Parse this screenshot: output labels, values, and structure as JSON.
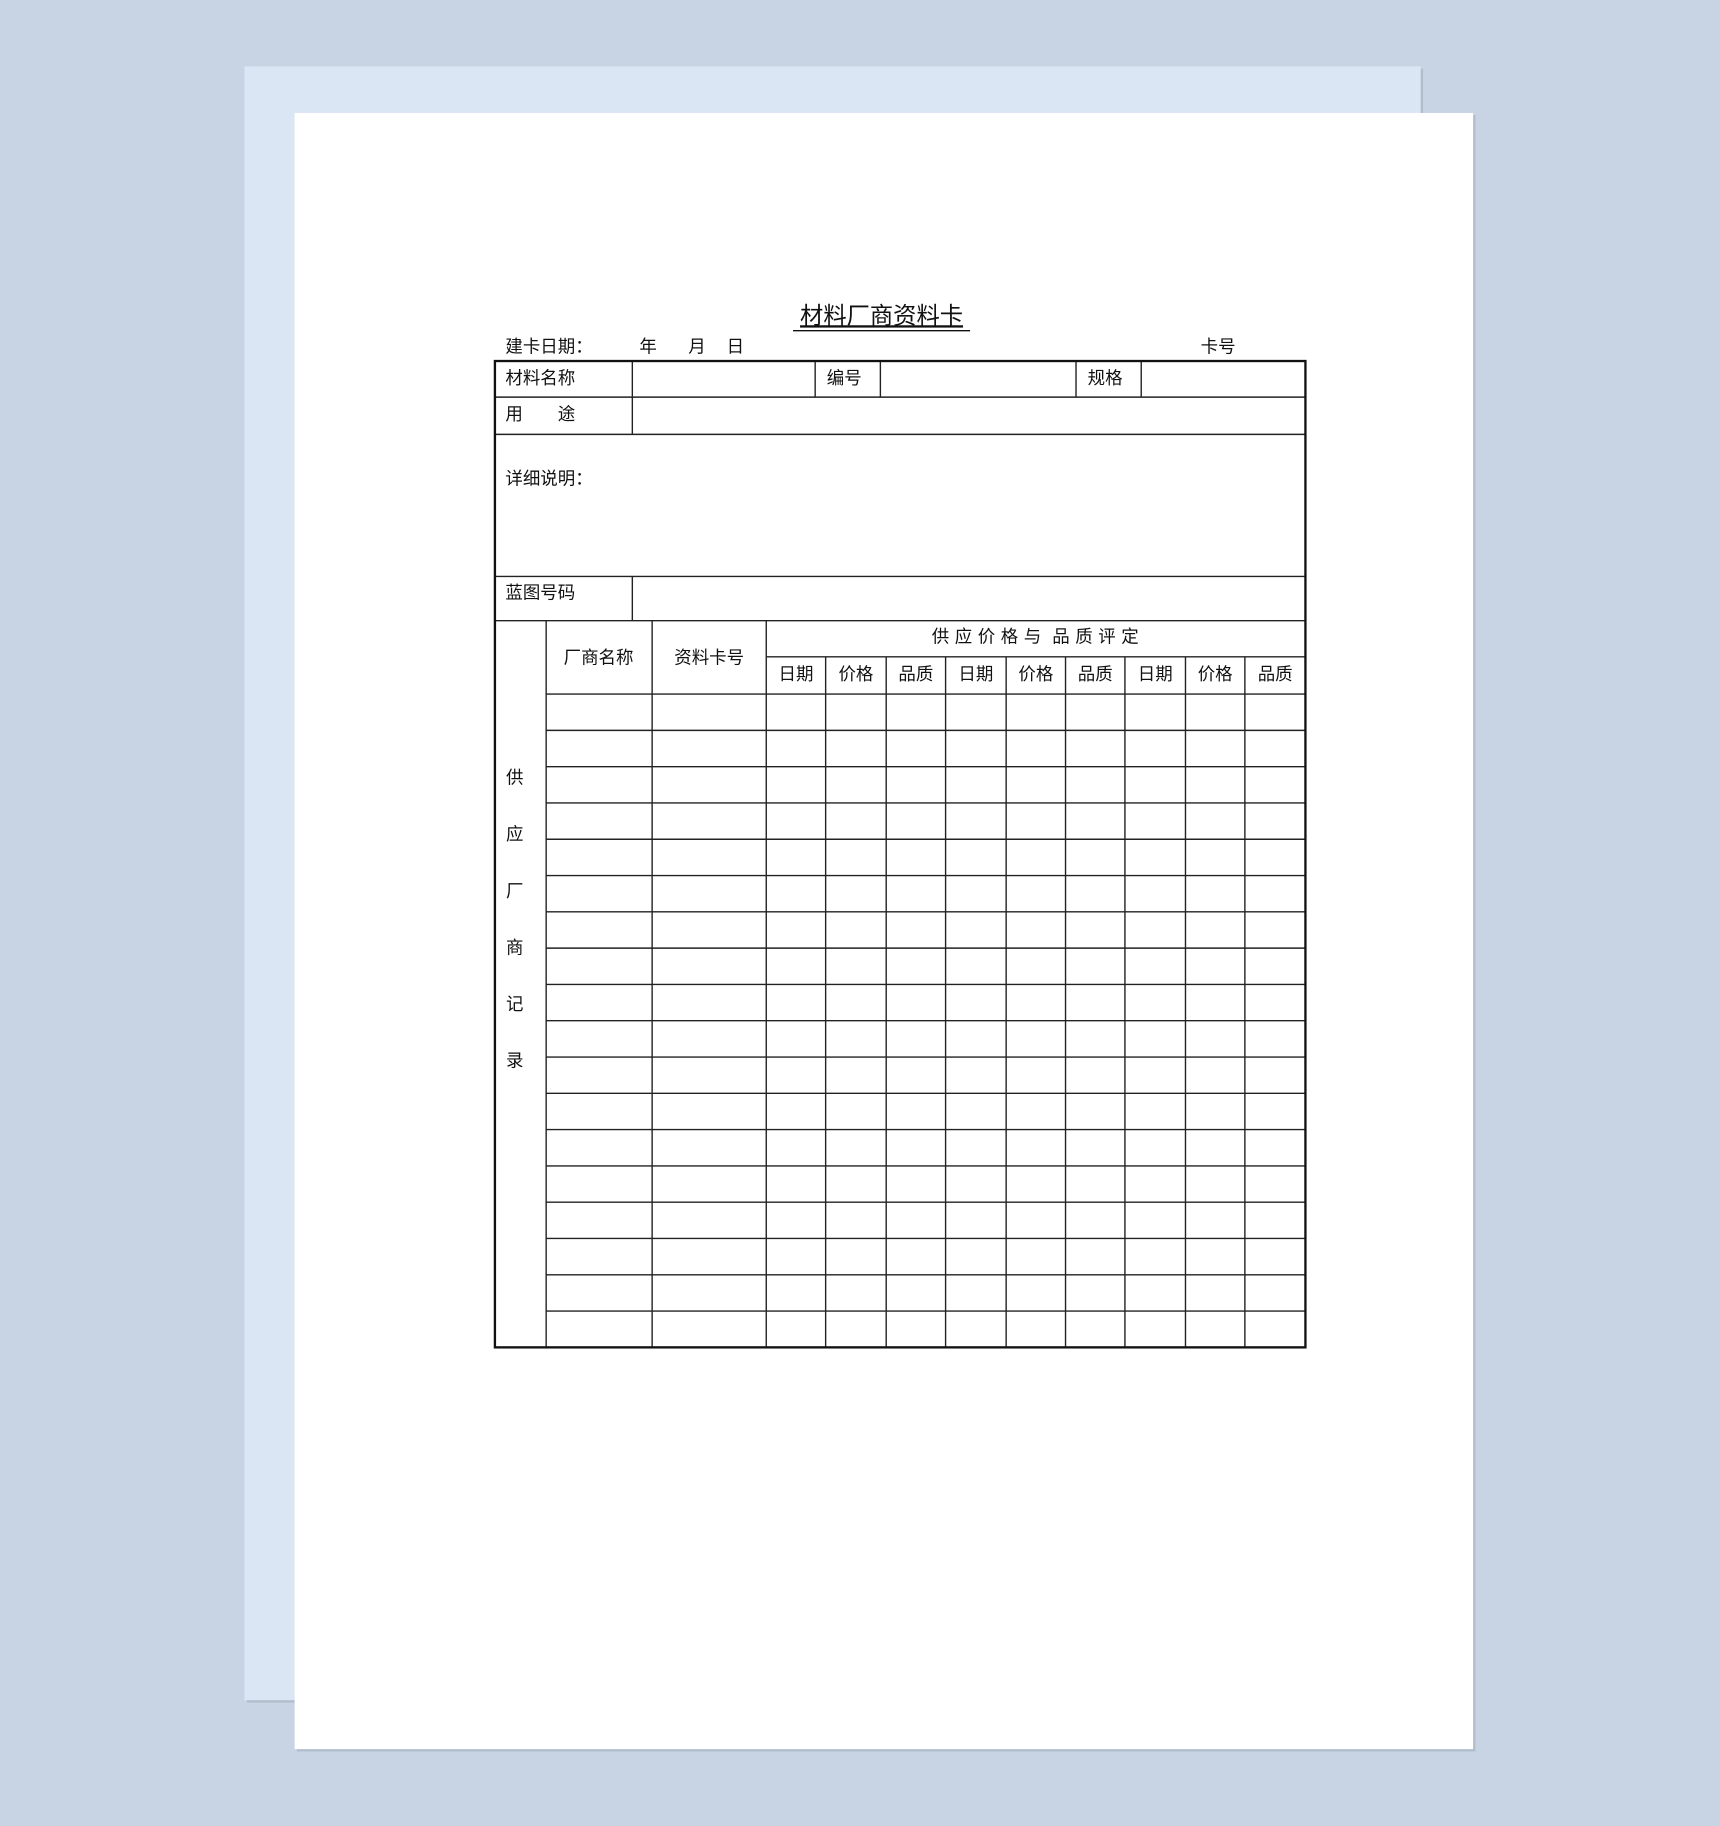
{
  "title": "材料厂商资料卡",
  "header": {
    "date_label": "建卡日期：",
    "year": "年",
    "month": "月",
    "day": "日",
    "card_no": "卡号"
  },
  "table": {
    "material_name": "材料名称",
    "code": "编号",
    "spec": "规格",
    "usage": "用　　途",
    "details": "详细说明：",
    "blueprint": "蓝图号码",
    "vendor_name": "厂商名称",
    "card_number": "资料卡号",
    "group_header": "供 应 价 格 与  品 质 评 定",
    "sub_headers": [
      "日期",
      "价格",
      "品质",
      "日期",
      "价格",
      "品质",
      "日期",
      "价格",
      "品质"
    ],
    "side_label": [
      "供",
      "应",
      "厂",
      "商",
      "记",
      "录"
    ]
  }
}
